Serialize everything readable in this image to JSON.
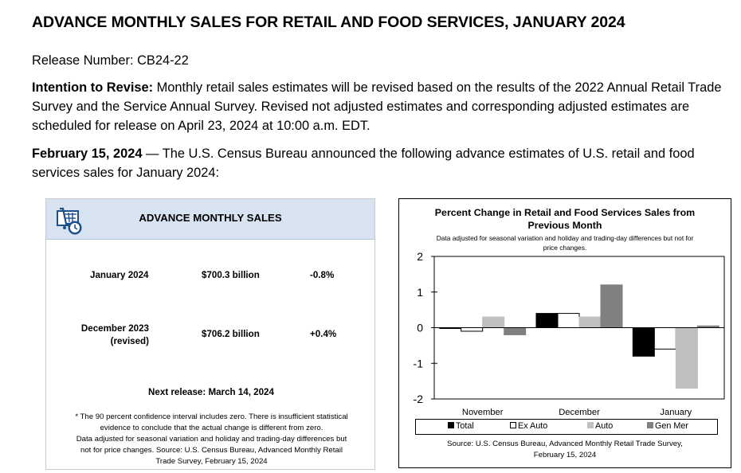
{
  "document": {
    "title": "ADVANCE MONTHLY SALES FOR RETAIL AND FOOD SERVICES, JANUARY 2024",
    "release_number": "Release Number: CB24-22",
    "intention_label": "Intention to Revise:",
    "intention_text": " Monthly retail sales estimates will be revised based on the results of the 2022 Annual Retail Trade Survey and the Service Annual Survey. Revised not adjusted estimates and corresponding adjusted estimates are scheduled for release on April 23, 2024 at 10:00 a.m. EDT.",
    "date_label": "February 15, 2024",
    "date_text": " — The U.S. Census Bureau announced the following advance estimates of U.S. retail and food services sales for January 2024:"
  },
  "summary_panel": {
    "title": "ADVANCE MONTHLY SALES",
    "icon": "shopping-cart-clock-icon",
    "rows": [
      {
        "period": "January 2024",
        "period_note": "",
        "value": "$700.3 billion",
        "change": "-0.8%"
      },
      {
        "period": "December 2023",
        "period_note": "(revised)",
        "value": "$706.2 billion",
        "change": "+0.4%"
      }
    ],
    "next_release": "Next release: March 14, 2024",
    "footnote_lines": [
      "* The 90 percent confidence interval includes zero. There is insufficient statistical",
      "evidence to conclude that the actual change is different from zero.",
      "Data adjusted for seasonal variation and holiday and trading-day differences but",
      "not for price changes. Source: U.S. Census Bureau, Advanced Monthly Retail",
      "Trade Survey, February 15, 2024"
    ]
  },
  "chart_data": {
    "type": "bar",
    "title_lines": [
      "Percent Change in Retail and Food Services Sales from",
      "Previous Month"
    ],
    "subtitle_lines": [
      "Data adjusted for seasonal variation and holiday and trading-day differences but not for",
      "price changes."
    ],
    "categories": [
      "November",
      "December",
      "January"
    ],
    "series": [
      {
        "name": "Total",
        "color": "#000000",
        "values": [
          0.0,
          0.4,
          -0.8
        ]
      },
      {
        "name": "Ex Auto",
        "color": "#ffffff",
        "values": [
          -0.1,
          0.4,
          -0.6
        ]
      },
      {
        "name": "Auto",
        "color": "#bfbfbf",
        "values": [
          0.3,
          0.3,
          -1.7
        ]
      },
      {
        "name": "Gen Mer",
        "color": "#808080",
        "values": [
          -0.2,
          1.2,
          0.05
        ]
      }
    ],
    "ylim": [
      -2,
      2
    ],
    "yticks": [
      "2",
      "1",
      "0",
      "-1",
      "-2"
    ],
    "ytick_values": [
      2,
      1,
      0,
      -1,
      -2
    ],
    "legend_position": "bottom",
    "source_lines": [
      "Source: U.S. Census Bureau, Advanced Monthly Retail Trade Survey,",
      "February 15, 2024"
    ]
  }
}
